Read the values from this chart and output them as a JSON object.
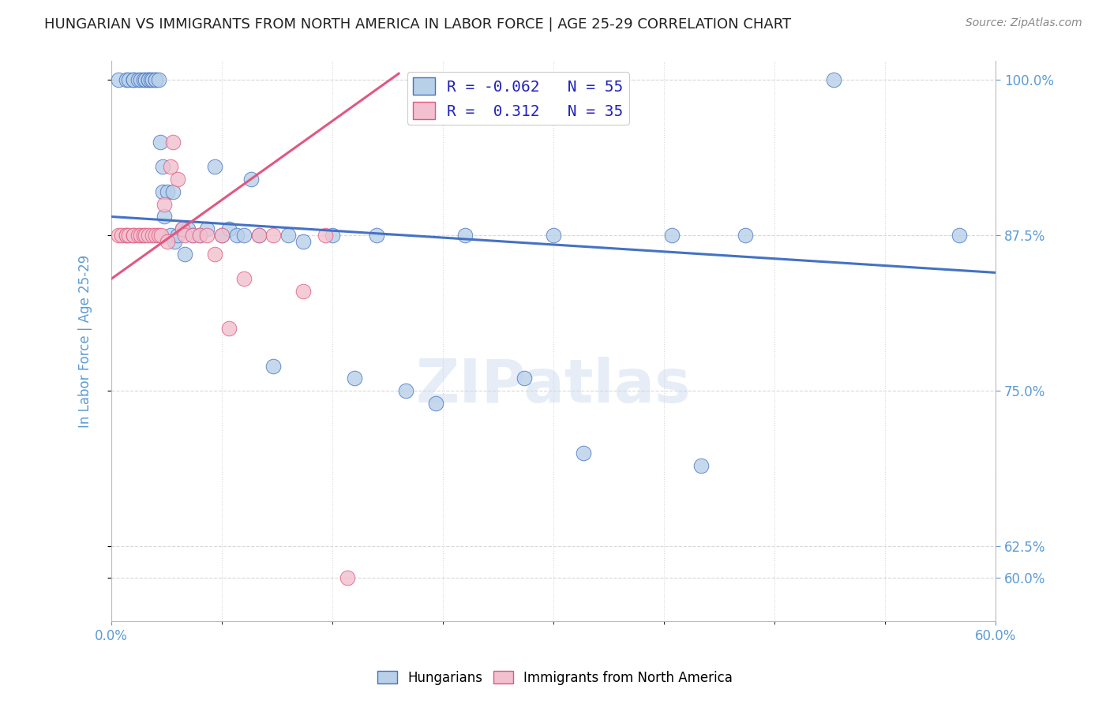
{
  "title": "HUNGARIAN VS IMMIGRANTS FROM NORTH AMERICA IN LABOR FORCE | AGE 25-29 CORRELATION CHART",
  "source": "Source: ZipAtlas.com",
  "ylabel": "In Labor Force | Age 25-29",
  "xmin": 0.0,
  "xmax": 0.6,
  "ymin": 0.565,
  "ymax": 1.015,
  "blue_R": -0.062,
  "blue_N": 55,
  "pink_R": 0.312,
  "pink_N": 35,
  "blue_color": "#b8d0e8",
  "pink_color": "#f2c0ce",
  "blue_line_color": "#4472c4",
  "pink_line_color": "#e05880",
  "legend_R_color": "#2222bb",
  "axis_color": "#5b9bd5",
  "watermark": "ZIPatlas",
  "grid_color": "#d8d8d8",
  "blue_scatter_x": [
    0.005,
    0.01,
    0.012,
    0.015,
    0.015,
    0.018,
    0.02,
    0.022,
    0.023,
    0.025,
    0.025,
    0.027,
    0.028,
    0.03,
    0.03,
    0.032,
    0.033,
    0.035,
    0.035,
    0.036,
    0.038,
    0.04,
    0.042,
    0.043,
    0.045,
    0.048,
    0.05,
    0.052,
    0.055,
    0.06,
    0.065,
    0.07,
    0.075,
    0.08,
    0.085,
    0.09,
    0.095,
    0.1,
    0.11,
    0.12,
    0.13,
    0.15,
    0.165,
    0.18,
    0.2,
    0.22,
    0.24,
    0.28,
    0.3,
    0.32,
    0.38,
    0.4,
    0.43,
    0.49,
    0.575
  ],
  "blue_scatter_y": [
    1.0,
    1.0,
    1.0,
    1.0,
    1.0,
    1.0,
    1.0,
    1.0,
    1.0,
    1.0,
    1.0,
    1.0,
    1.0,
    1.0,
    1.0,
    1.0,
    0.95,
    0.93,
    0.91,
    0.89,
    0.91,
    0.875,
    0.91,
    0.87,
    0.875,
    0.88,
    0.86,
    0.88,
    0.875,
    0.875,
    0.88,
    0.93,
    0.875,
    0.88,
    0.875,
    0.875,
    0.92,
    0.875,
    0.77,
    0.875,
    0.87,
    0.875,
    0.76,
    0.875,
    0.75,
    0.74,
    0.875,
    0.76,
    0.875,
    0.7,
    0.875,
    0.69,
    0.875,
    1.0,
    0.875
  ],
  "pink_scatter_x": [
    0.005,
    0.007,
    0.01,
    0.01,
    0.012,
    0.015,
    0.015,
    0.018,
    0.02,
    0.022,
    0.023,
    0.025,
    0.028,
    0.03,
    0.032,
    0.034,
    0.036,
    0.038,
    0.04,
    0.042,
    0.045,
    0.048,
    0.05,
    0.055,
    0.06,
    0.065,
    0.07,
    0.075,
    0.08,
    0.09,
    0.1,
    0.11,
    0.13,
    0.145,
    0.16
  ],
  "pink_scatter_y": [
    0.875,
    0.875,
    0.875,
    0.875,
    0.875,
    0.875,
    0.875,
    0.875,
    0.875,
    0.875,
    0.875,
    0.875,
    0.875,
    0.875,
    0.875,
    0.875,
    0.9,
    0.87,
    0.93,
    0.95,
    0.92,
    0.88,
    0.875,
    0.875,
    0.875,
    0.875,
    0.86,
    0.875,
    0.8,
    0.84,
    0.875,
    0.875,
    0.83,
    0.875,
    0.6
  ]
}
